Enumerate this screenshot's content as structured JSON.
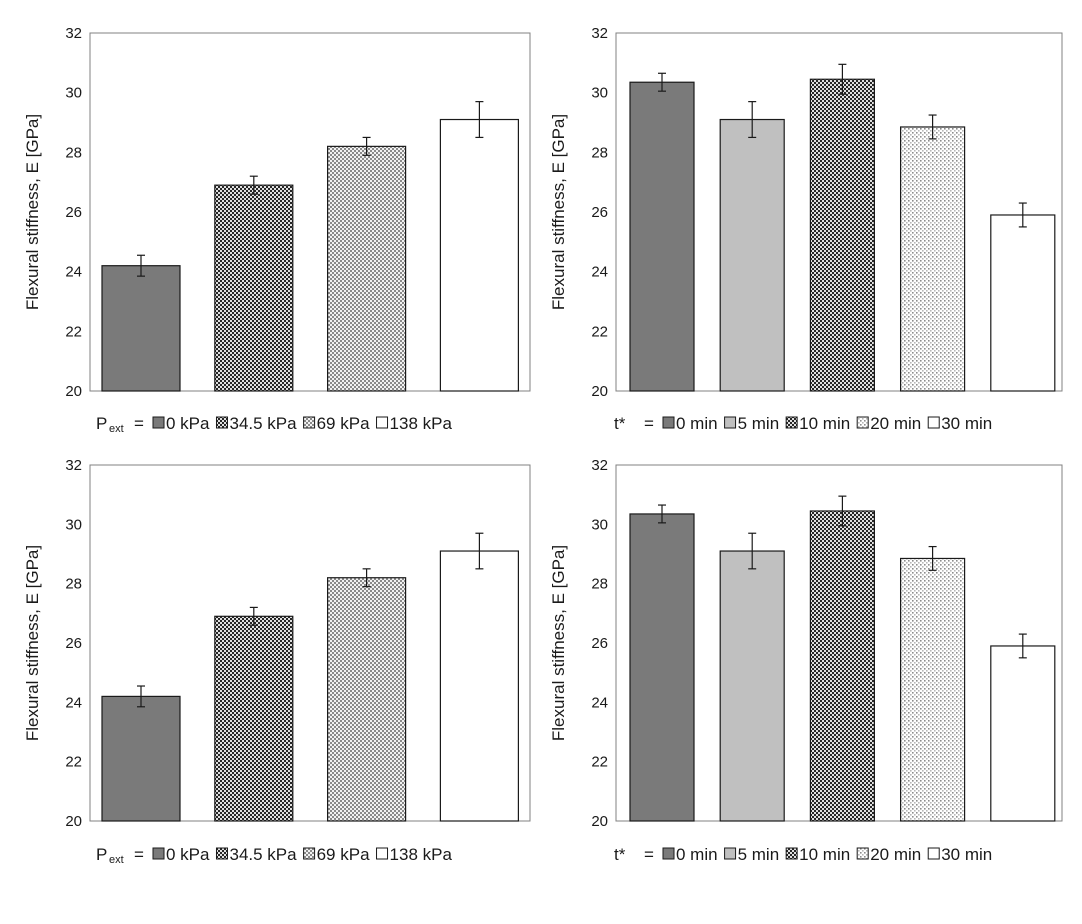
{
  "figure": {
    "panel_count": 4
  },
  "colors": {
    "bar_0": "#7a7a7a",
    "bar_light": "#c0c0c0",
    "bar_open": "#ffffff",
    "stroke": "#1a1a1a"
  },
  "chart_data": [
    {
      "type": "bar",
      "panel": "top-left",
      "title": "",
      "xlabel": "",
      "ylabel": "Flexural  stiffness, E [GPa]",
      "ylim": [
        20,
        32
      ],
      "yticks": [
        20,
        22,
        24,
        26,
        28,
        30,
        32
      ],
      "categories": [
        "0 kPa",
        "34.5 kPa",
        "69 kPa",
        "138 kPa"
      ],
      "values": [
        24.2,
        26.9,
        28.2,
        29.1
      ],
      "errors": [
        0.35,
        0.3,
        0.3,
        0.6
      ],
      "fills": [
        "solid-dark",
        "check-dark",
        "check-light",
        "open"
      ],
      "legend": {
        "prefix": "P",
        "prefix_sub": "ext",
        "equals": "=",
        "position": "bottom"
      }
    },
    {
      "type": "bar",
      "panel": "top-right",
      "title": "",
      "xlabel": "",
      "ylabel": "Flexural  stiffness, E [GPa]",
      "ylim": [
        20,
        32
      ],
      "yticks": [
        20,
        22,
        24,
        26,
        28,
        30,
        32
      ],
      "categories": [
        "0 min",
        "5 min",
        "10 min",
        "20 min",
        "30 min"
      ],
      "values": [
        30.35,
        29.1,
        30.45,
        28.85,
        25.9
      ],
      "errors": [
        0.3,
        0.6,
        0.5,
        0.4,
        0.4
      ],
      "fills": [
        "solid-dark",
        "solid-light",
        "check-dark",
        "dots",
        "open"
      ],
      "legend": {
        "prefix": "t*",
        "prefix_sub": "",
        "equals": "=",
        "position": "bottom"
      }
    },
    {
      "type": "bar",
      "panel": "bottom-left",
      "title": "",
      "xlabel": "",
      "ylabel": "Flexural  stiffness, E [GPa]",
      "ylim": [
        20,
        32
      ],
      "yticks": [
        20,
        22,
        24,
        26,
        28,
        30,
        32
      ],
      "categories": [
        "0 kPa",
        "34.5 kPa",
        "69 kPa",
        "138 kPa"
      ],
      "values": [
        24.2,
        26.9,
        28.2,
        29.1
      ],
      "errors": [
        0.35,
        0.3,
        0.3,
        0.6
      ],
      "fills": [
        "solid-dark",
        "check-dark",
        "check-light",
        "open"
      ],
      "legend": {
        "prefix": "P",
        "prefix_sub": "ext",
        "equals": "=",
        "position": "bottom"
      }
    },
    {
      "type": "bar",
      "panel": "bottom-right",
      "title": "",
      "xlabel": "",
      "ylabel": "Flexural  stiffness, E [GPa]",
      "ylim": [
        20,
        32
      ],
      "yticks": [
        20,
        22,
        24,
        26,
        28,
        30,
        32
      ],
      "categories": [
        "0 min",
        "5 min",
        "10 min",
        "20 min",
        "30 min"
      ],
      "values": [
        30.35,
        29.1,
        30.45,
        28.85,
        25.9
      ],
      "errors": [
        0.3,
        0.6,
        0.5,
        0.4,
        0.4
      ],
      "fills": [
        "solid-dark",
        "solid-light",
        "check-dark",
        "dots",
        "open"
      ],
      "legend": {
        "prefix": "t*",
        "prefix_sub": "",
        "equals": "=",
        "position": "bottom"
      }
    }
  ]
}
